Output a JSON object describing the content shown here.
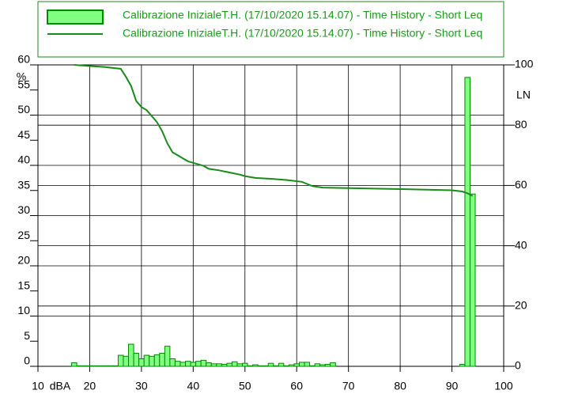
{
  "chart_data": {
    "type": "histogram",
    "legend": [
      "Calibrazione InizialeT.H. (17/10/2020 15.14.07) - Time History - Short Leq",
      "Calibrazione InizialeT.H. (17/10/2020 15.14.07) - Time History - Short Leq"
    ],
    "xlabel": "dBA",
    "ylabel": "%",
    "y2label": "LN",
    "xlim": [
      10,
      100
    ],
    "xticks": [
      10,
      20,
      30,
      40,
      50,
      60,
      70,
      80,
      90,
      100
    ],
    "ylim": [
      0,
      60
    ],
    "yticks": [
      0,
      5,
      10,
      15,
      20,
      25,
      30,
      35,
      40,
      45,
      50,
      55,
      60
    ],
    "y2lim": [
      0,
      100
    ],
    "y2ticks": [
      0,
      20,
      40,
      60,
      80,
      100
    ],
    "grid": true,
    "bins": [
      9.5,
      10.5,
      11.5,
      12.5,
      13.5,
      14.5,
      15.5,
      16.5,
      17.5,
      18.5,
      19.5,
      20.5,
      21.5,
      22.5,
      23.5,
      24.5,
      25.5,
      26.5,
      27.5,
      28.5,
      29.5,
      30.5,
      31.5,
      32.5,
      33.5,
      34.5,
      35.5,
      36.5,
      37.5,
      38.5,
      39.5,
      40.5,
      41.5,
      42.5,
      43.5,
      44.5,
      45.5,
      46.5,
      47.5,
      48.5,
      49.5,
      50.5,
      51.5,
      52.5,
      53.5,
      54.5,
      55.5,
      56.5,
      57.5,
      58.5,
      59.5,
      60.5,
      61.5,
      62.5,
      63.5,
      64.5,
      65.5,
      66.5,
      67.5,
      68.5,
      69.5,
      70.5,
      71.5,
      72.5,
      73.5,
      74.5,
      75.5,
      76.5,
      77.5,
      78.5,
      79.5,
      80.5,
      81.5,
      82.5,
      83.5,
      84.5,
      85.5,
      86.5,
      87.5,
      88.5,
      89.5,
      90.5,
      91.5,
      92.5,
      93.5,
      94.5
    ],
    "series": [
      {
        "name": "Calibrazione InizialeT.H. (17/10/2020 15.14.07) - Time History - Short Leq",
        "color": "#80ff80",
        "edge": "#008800",
        "values": [
          0,
          0,
          0,
          0,
          0,
          0,
          0,
          0.7,
          0.1,
          0.1,
          0.1,
          0.1,
          0.1,
          0.1,
          0.1,
          0.1,
          2.2,
          2.0,
          4.4,
          2.6,
          1.5,
          2.2,
          2.0,
          2.3,
          2.6,
          4.0,
          1.5,
          1.0,
          0.8,
          1.0,
          0.8,
          1.0,
          1.2,
          0.7,
          0.5,
          0.5,
          0.4,
          0.6,
          0.9,
          0.5,
          0.6,
          0.1,
          0.3,
          0.1,
          0.1,
          0.6,
          0.1,
          0.6,
          0.1,
          0.3,
          0.5,
          0.8,
          0.8,
          0.1,
          0.5,
          0.3,
          0.4,
          0.7,
          0,
          0,
          0,
          0,
          0,
          0,
          0,
          0,
          0,
          0,
          0,
          0,
          0,
          0,
          0,
          0,
          0,
          0,
          0,
          0,
          0,
          0,
          0,
          0,
          0.4,
          57.5,
          34.3
        ]
      },
      {
        "name": "Calibrazione InizialeT.H. (17/10/2020 15.14.07) - Time History - Short Leq",
        "type": "line",
        "axis": "y2",
        "color": "#1a8a1a",
        "x": [
          17,
          20,
          23,
          26,
          27,
          28,
          29,
          30,
          31,
          32,
          33,
          34,
          35,
          36,
          37,
          38,
          39,
          40,
          41,
          42,
          43,
          45,
          47,
          49,
          50,
          52,
          55,
          58,
          61,
          62,
          63,
          65,
          70,
          80,
          90,
          92,
          93,
          94
        ],
        "values": [
          100,
          99.6,
          99.3,
          98.7,
          96,
          93,
          88,
          86,
          85,
          83,
          81,
          78,
          74,
          71,
          70,
          69,
          68,
          67.5,
          67,
          66.5,
          65.5,
          65,
          64.3,
          63.6,
          63.1,
          62.5,
          62.2,
          61.8,
          61.2,
          60.5,
          59.8,
          59.3,
          59.1,
          58.8,
          58.4,
          58,
          57.4,
          56.5
        ]
      }
    ]
  }
}
